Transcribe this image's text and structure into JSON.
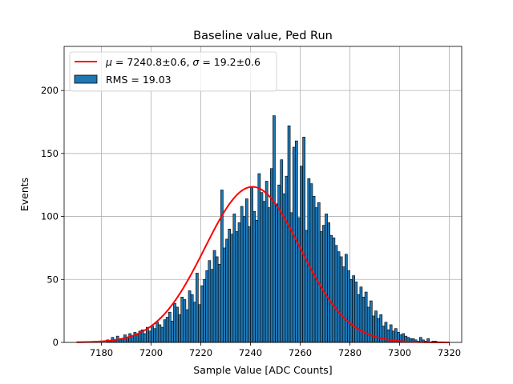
{
  "chart_data": {
    "type": "bar",
    "title": "Baseline value, Ped Run",
    "xlabel": "Sample Value [ADC Counts]",
    "ylabel": "Events",
    "xlim": [
      7165,
      7325
    ],
    "ylim": [
      0,
      235
    ],
    "xticks": [
      7180,
      7200,
      7220,
      7240,
      7260,
      7280,
      7300,
      7320
    ],
    "yticks": [
      0,
      50,
      100,
      150,
      200
    ],
    "grid": true,
    "legend_position": "top-left",
    "bin_width": 1,
    "hist_start": 7170,
    "histogram": {
      "name": "RMS = 19.03",
      "color": "#1f77b4",
      "values": [
        0,
        0,
        0,
        0,
        0,
        0,
        0,
        0,
        0,
        0,
        0,
        0,
        2,
        1,
        4,
        2,
        5,
        2,
        3,
        6,
        4,
        7,
        5,
        8,
        6,
        9,
        10,
        7,
        12,
        9,
        13,
        11,
        16,
        14,
        12,
        18,
        20,
        24,
        17,
        31,
        28,
        22,
        36,
        34,
        26,
        41,
        38,
        32,
        55,
        30,
        45,
        50,
        57,
        65,
        58,
        73,
        68,
        62,
        121,
        75,
        82,
        90,
        86,
        102,
        88,
        95,
        108,
        100,
        114,
        92,
        123,
        104,
        97,
        134,
        119,
        112,
        128,
        107,
        138,
        180,
        110,
        125,
        145,
        118,
        132,
        172,
        103,
        155,
        160,
        99,
        140,
        163,
        89,
        130,
        126,
        116,
        107,
        111,
        88,
        93,
        102,
        95,
        85,
        83,
        77,
        72,
        68,
        60,
        70,
        57,
        50,
        53,
        48,
        38,
        44,
        36,
        40,
        28,
        33,
        21,
        25,
        19,
        22,
        13,
        16,
        10,
        14,
        9,
        11,
        8,
        6,
        7,
        5,
        4,
        3,
        3,
        2,
        1,
        4,
        2,
        1,
        3,
        0,
        1,
        1,
        0
      ]
    },
    "fit": {
      "name": "$\\mu=7240.8\\pm0.6, \\sigma=19.2\\pm0.6$",
      "color": "#ff0000",
      "mu": 7240.8,
      "sigma": 19.2,
      "amplitude": 123.5,
      "x_range": [
        7170,
        7320
      ]
    }
  }
}
